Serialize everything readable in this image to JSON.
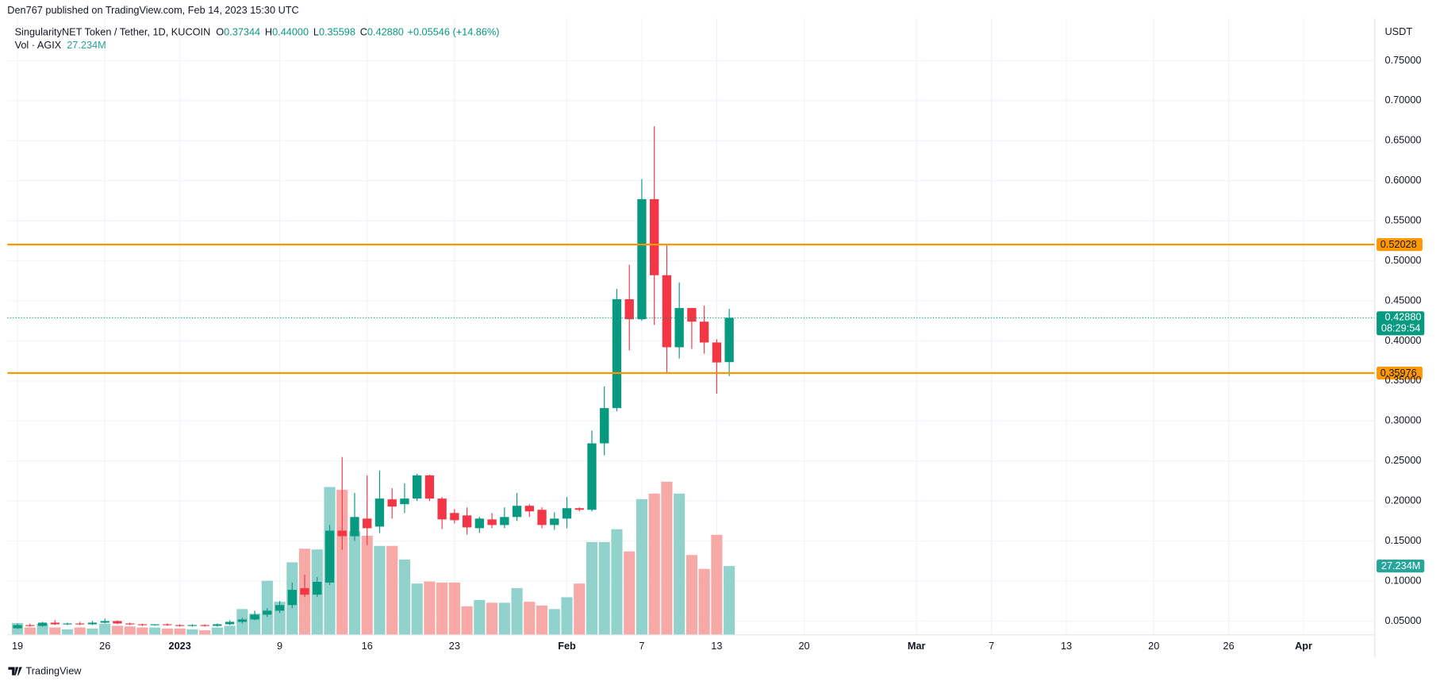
{
  "header": "Den767 published on TradingView.com, Feb 14, 2023 15:30 UTC",
  "footer": "TradingView",
  "chart_data": {
    "type": "candlestick",
    "title": "SingularityNET Token / Tether, 1D, KUCOIN",
    "ohlc_legend": [
      {
        "label": "O",
        "value": "0.37344"
      },
      {
        "label": "H",
        "value": "0.44000"
      },
      {
        "label": "L",
        "value": "0.35598"
      },
      {
        "label": "C",
        "value": "0.42880"
      }
    ],
    "change": "+0.05546 (+14.86%)",
    "volume_title": "Vol · AGIX",
    "volume_label": "27.234M",
    "y_unit": "USDT",
    "up_color": "#089981",
    "down_color": "#f23645",
    "volume_up_color": "#92d2cc",
    "volume_down_color": "#f7a9a7",
    "level_color": "#ff9800",
    "grid": true,
    "open": [
      0.041,
      0.045,
      0.044,
      0.048,
      0.046,
      0.047,
      0.046,
      0.048,
      0.05,
      0.047,
      0.046,
      0.045,
      0.046,
      0.045,
      0.044,
      0.045,
      0.044,
      0.046,
      0.049,
      0.052,
      0.058,
      0.063,
      0.07,
      0.091,
      0.083,
      0.098,
      0.163,
      0.156,
      0.178,
      0.168,
      0.202,
      0.196,
      0.203,
      0.232,
      0.203,
      0.185,
      0.182,
      0.166,
      0.177,
      0.17,
      0.18,
      0.194,
      0.189,
      0.17,
      0.178,
      0.191,
      0.189,
      0.272,
      0.316,
      0.452,
      0.427,
      0.577,
      0.482,
      0.392,
      0.441,
      0.424,
      0.398,
      0.37344
    ],
    "high": [
      0.047,
      0.047,
      0.049,
      0.051,
      0.048,
      0.049,
      0.05,
      0.053,
      0.051,
      0.048,
      0.047,
      0.046,
      0.047,
      0.046,
      0.046,
      0.046,
      0.047,
      0.051,
      0.054,
      0.063,
      0.066,
      0.075,
      0.098,
      0.108,
      0.105,
      0.17,
      0.255,
      0.21,
      0.232,
      0.238,
      0.216,
      0.222,
      0.234,
      0.233,
      0.205,
      0.19,
      0.192,
      0.18,
      0.185,
      0.192,
      0.21,
      0.196,
      0.192,
      0.186,
      0.205,
      0.192,
      0.288,
      0.343,
      0.465,
      0.495,
      0.602,
      0.668,
      0.52,
      0.473,
      0.441,
      0.444,
      0.402,
      0.44
    ],
    "low": [
      0.04,
      0.043,
      0.043,
      0.045,
      0.045,
      0.045,
      0.045,
      0.047,
      0.046,
      0.045,
      0.044,
      0.044,
      0.044,
      0.043,
      0.043,
      0.043,
      0.043,
      0.045,
      0.047,
      0.051,
      0.055,
      0.06,
      0.066,
      0.08,
      0.08,
      0.095,
      0.139,
      0.15,
      0.145,
      0.16,
      0.178,
      0.185,
      0.2,
      0.2,
      0.165,
      0.172,
      0.158,
      0.16,
      0.166,
      0.166,
      0.175,
      0.18,
      0.166,
      0.164,
      0.166,
      0.187,
      0.187,
      0.257,
      0.312,
      0.388,
      0.425,
      0.42,
      0.359,
      0.378,
      0.39,
      0.384,
      0.334,
      0.35598
    ],
    "close": [
      0.045,
      0.044,
      0.048,
      0.046,
      0.047,
      0.046,
      0.048,
      0.05,
      0.047,
      0.046,
      0.045,
      0.046,
      0.045,
      0.044,
      0.045,
      0.044,
      0.046,
      0.049,
      0.052,
      0.058,
      0.063,
      0.07,
      0.089,
      0.083,
      0.099,
      0.163,
      0.156,
      0.18,
      0.166,
      0.203,
      0.193,
      0.203,
      0.232,
      0.203,
      0.177,
      0.176,
      0.167,
      0.178,
      0.17,
      0.18,
      0.194,
      0.187,
      0.17,
      0.178,
      0.191,
      0.189,
      0.272,
      0.316,
      0.452,
      0.427,
      0.577,
      0.482,
      0.392,
      0.441,
      0.424,
      0.398,
      0.373,
      0.4288
    ],
    "volume": [
      4700000,
      2900000,
      4400000,
      2900000,
      2200000,
      2900000,
      2500000,
      4400000,
      3600000,
      3300000,
      2900000,
      2900000,
      2500000,
      2500000,
      2200000,
      1800000,
      2900000,
      3600000,
      10200000,
      8400000,
      21400000,
      13100000,
      28700000,
      34100000,
      33800000,
      58500000,
      57400000,
      41000000,
      39200000,
      35200000,
      35200000,
      29800000,
      20300000,
      21100000,
      20700000,
      20700000,
      11300000,
      13800000,
      12700000,
      12700000,
      18500000,
      13100000,
      11600000,
      10200000,
      14900000,
      20300000,
      36700000,
      36700000,
      41800000,
      33000000,
      53700000,
      55900000,
      60600000,
      55900000,
      31600000,
      26100000,
      39600000,
      27234000
    ],
    "volume_lim": [
      0,
      100000000
    ],
    "levels": [
      {
        "value": 0.52028,
        "label": "0.52028"
      },
      {
        "value": 0.35976,
        "label": "0.35976"
      }
    ],
    "last_price": {
      "value": 0.4288,
      "label": "0.42880"
    },
    "countdown": "08:29:54",
    "xlim": [
      -0.81,
      108.7
    ],
    "xticks": [
      {
        "value": 0,
        "label": "19"
      },
      {
        "value": 7,
        "label": "26"
      },
      {
        "value": 13,
        "label": "2023"
      },
      {
        "value": 21,
        "label": "9"
      },
      {
        "value": 28,
        "label": "16"
      },
      {
        "value": 35,
        "label": "23"
      },
      {
        "value": 44,
        "label": "Feb"
      },
      {
        "value": 50,
        "label": "7"
      },
      {
        "value": 56,
        "label": "13"
      },
      {
        "value": 63,
        "label": "20"
      },
      {
        "value": 72,
        "label": "Mar"
      },
      {
        "value": 78,
        "label": "7"
      },
      {
        "value": 84,
        "label": "13"
      },
      {
        "value": 91,
        "label": "20"
      },
      {
        "value": 97,
        "label": "26"
      },
      {
        "value": 103,
        "label": "Apr"
      }
    ],
    "ylim": [
      0.0328,
      0.8028
    ],
    "yticks": [
      {
        "value": 0.05,
        "label": "0.05000"
      },
      {
        "value": 0.1,
        "label": "0.10000"
      },
      {
        "value": 0.15,
        "label": "0.15000"
      },
      {
        "value": 0.2,
        "label": "0.20000"
      },
      {
        "value": 0.25,
        "label": "0.25000"
      },
      {
        "value": 0.3,
        "label": "0.30000"
      },
      {
        "value": 0.35,
        "label": "0.35000"
      },
      {
        "value": 0.4,
        "label": "0.40000"
      },
      {
        "value": 0.45,
        "label": "0.45000"
      },
      {
        "value": 0.5,
        "label": "0.50000"
      },
      {
        "value": 0.55,
        "label": "0.55000"
      },
      {
        "value": 0.6,
        "label": "0.60000"
      },
      {
        "value": 0.65,
        "label": "0.65000"
      },
      {
        "value": 0.7,
        "label": "0.70000"
      },
      {
        "value": 0.75,
        "label": "0.75000"
      }
    ]
  }
}
